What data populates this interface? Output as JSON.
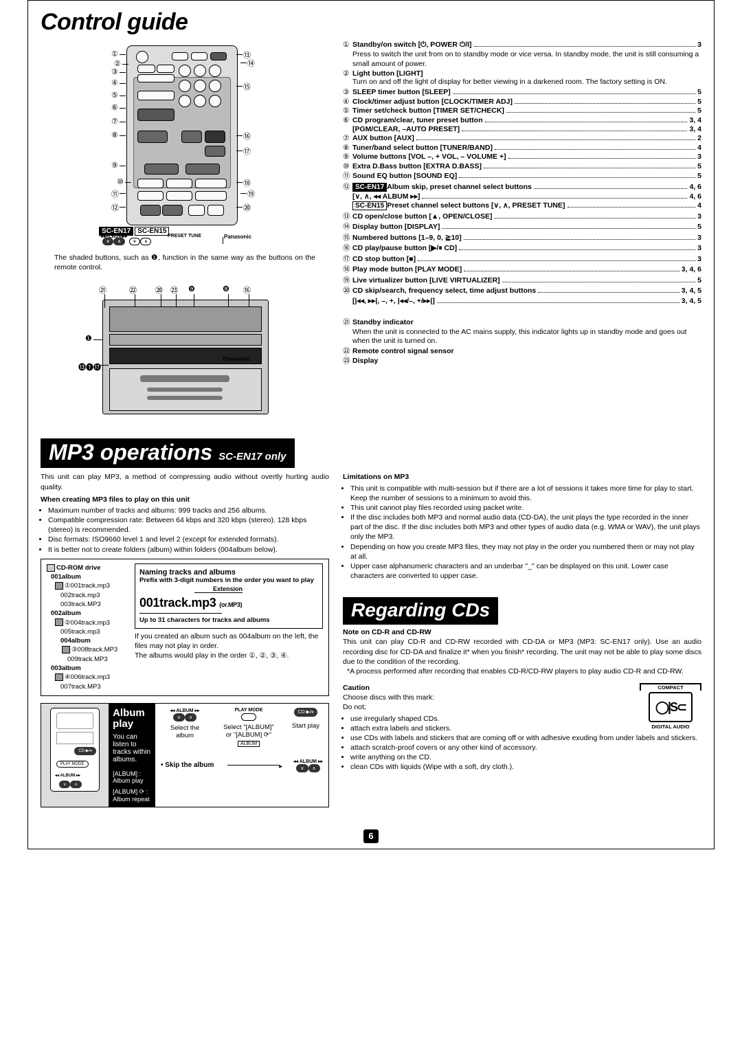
{
  "sections": {
    "controlGuide": "Control guide",
    "mp3ops": "MP3 operations",
    "mp3opsSub": "SC-EN17 only",
    "regardingCDs": "Regarding CDs"
  },
  "remote": {
    "models": {
      "en17": "SC-EN17",
      "en15": "SC-EN15"
    },
    "bottomLabels": {
      "album": "◂◂ALBUM▸▸",
      "preset": "PRESET TUNE",
      "brand": "Panasonic"
    },
    "note": "The shaded buttons, such as ❶, function in the same way as the buttons on the remote control.",
    "unitCallouts": {
      "a": "㉑",
      "b": "㉒",
      "c": "⑳",
      "d": "㉓",
      "e": "❾",
      "f": "❽",
      "g": "⑯",
      "h": "❶",
      "i": "⓭❶⓱"
    }
  },
  "toc": [
    {
      "n": "①",
      "label": "Standby/on switch [⏻, POWER ⏻/I]",
      "pg": "3",
      "sub": "Press to switch the unit from on to standby mode or vice versa.\nIn standby mode, the unit is still consuming a small amount of power."
    },
    {
      "n": "②",
      "label": "Light button [LIGHT]",
      "sub": "Turn on and off the light of display for better viewing in a darkened room. The factory setting is ON."
    },
    {
      "n": "③",
      "label": "SLEEP timer button [SLEEP]",
      "pg": "5"
    },
    {
      "n": "④",
      "label": "Clock/timer adjust button [CLOCK/TIMER ADJ]",
      "pg": "5"
    },
    {
      "n": "⑤",
      "label": "Timer set/check button [TIMER SET/CHECK]",
      "pg": "5"
    },
    {
      "n": "⑥",
      "label": "CD program/clear, tuner preset button",
      "subline": "[PGM/CLEAR, –AUTO PRESET]",
      "pg": "3, 4"
    },
    {
      "n": "⑦",
      "label": "AUX button [AUX]",
      "pg": "2"
    },
    {
      "n": "⑧",
      "label": "Tuner/band select button [TUNER/BAND]",
      "pg": "4"
    },
    {
      "n": "⑨",
      "label": "Volume buttons [VOL –, + VOL, – VOLUME +]",
      "pg": "3"
    },
    {
      "n": "⑩",
      "label": "Extra D.Bass button [EXTRA D.BASS]",
      "pg": "5"
    },
    {
      "n": "⑪",
      "label": "Sound EQ button [SOUND EQ]",
      "pg": "5"
    },
    {
      "n": "⑫",
      "badge": "SC-EN17",
      "label": "Album skip, preset channel select buttons",
      "subline": "[∨, ∧, ◂◂ ALBUM ▸▸]",
      "pg": "4, 6",
      "extra": {
        "badge": "SC-EN15",
        "label": "Preset channel select buttons [∨, ∧, PRESET TUNE]",
        "pg": "4"
      }
    },
    {
      "n": "⑬",
      "label": "CD open/close button [▲, OPEN/CLOSE]",
      "pg": "3"
    },
    {
      "n": "⑭",
      "label": "Display button [DISPLAY]",
      "pg": "5"
    },
    {
      "n": "⑮",
      "label": "Numbered buttons [1–9, 0, ≧10]",
      "pg": "3"
    },
    {
      "n": "⑯",
      "label": "CD play/pause button [▶/⏸ CD]",
      "pg": "3"
    },
    {
      "n": "⑰",
      "label": "CD stop button [■]",
      "pg": "3"
    },
    {
      "n": "⑱",
      "label": "Play mode button [PLAY MODE]",
      "pg": "3, 4, 6"
    },
    {
      "n": "⑲",
      "label": "Live virtualizer button [LIVE VIRTUALIZER]",
      "pg": "5"
    },
    {
      "n": "⑳",
      "label": "CD skip/search, frequency select, time adjust buttons",
      "subline": "[|◂◂, ▸▸|, –, +, |◂◂/–, +/▸▸|]",
      "pg": "3, 4, 5"
    }
  ],
  "lowerToc": [
    {
      "n": "㉑",
      "label": "Standby indicator",
      "sub": "When the unit is connected to the AC mains supply, this indicator lights up in standby mode and goes out when the unit is turned on."
    },
    {
      "n": "㉒",
      "label": "Remote control signal sensor"
    },
    {
      "n": "㉓",
      "label": "Display"
    }
  ],
  "mp3": {
    "intro": "This unit can play MP3, a method of compressing audio without overtly hurting audio quality.",
    "whenCreatingTitle": "When creating MP3 files to play on this unit",
    "whenCreating": [
      "Maximum number of tracks and albums: 999 tracks and 256 albums.",
      "Compatible compression rate: Between 64 kbps and 320 kbps (stereo). 128 kbps (stereo) is recommended.",
      "Disc formats: ISO9660 level 1 and level 2 (except for extended formats).",
      "It is better not to create folders (album) within folders (004album below)."
    ],
    "tree": {
      "root": "CD-ROM drive",
      "a1": "001album",
      "t1": "001track.mp3",
      "t2": "002track.mp3",
      "t3": "003track.MP3",
      "a2": "002album",
      "t4": "004track.mp3",
      "t5": "005track.mp3",
      "a4": "004album",
      "t8": "008track.MP3",
      "t9": "009track.MP3",
      "a3": "003album",
      "t6": "006track.mp3",
      "t7": "007track.MP3"
    },
    "naming": {
      "title": "Naming tracks and albums",
      "line1": "Prefix with 3-digit numbers in the order you want to play",
      "ext": "Extension",
      "big": "001track.mp3",
      "bigalt": "(or.MP3)",
      "line2": "Up to 31 characters for tracks and albums"
    },
    "treeNote1": "If you created an album such as 004album on the left, the files may not play in order.",
    "treeNote2": "The albums would play in the order ①, ②, ③, ④.",
    "album": {
      "title": "Album play",
      "youcan": "You can listen to tracks within albums.",
      "ap": "[ALBUM] : Album play",
      "ar": "[ALBUM] ⟳ : Album repeat",
      "selAlbum": "Select the album",
      "selMode": "Select \"[ALBUM]\" or \"[ALBUM] ⟳\"",
      "start": "Start play",
      "skip": "• Skip the album",
      "btnAlbum": "◂◂ ALBUM ▸▸",
      "btnVA": "∨  ∧",
      "btnPlay": "PLAY MODE",
      "btnCD": "CD ▶/⏸"
    },
    "limitTitle": "Limitations on MP3",
    "limits": [
      "This unit is compatible with multi-session but if there are a lot of sessions it takes more time for play to start. Keep the number of sessions to a minimum to avoid this.",
      "This unit cannot play files recorded using packet write.",
      "If the disc includes both MP3 and normal audio data (CD-DA), the unit plays the type recorded in the inner part of the disc. If the disc includes both MP3 and other types of audio data (e.g. WMA or WAV), the unit plays only the MP3.",
      "Depending on how you create MP3 files, they may not play in the order you numbered them or may not play at all.",
      "Upper case alphanumeric characters and an underbar \"_\" can be displayed on this unit. Lower case characters are converted to upper case."
    ]
  },
  "cds": {
    "noteTitle": "Note on CD-R and CD-RW",
    "note": "This unit can play CD-R and CD-RW recorded with CD-DA or MP3 (MP3: SC-EN17 only). Use an audio recording disc for CD-DA and finalize it* when you finish* recording. The unit may not be able to play some discs due to the condition of the recording.",
    "noteStar": "*A process performed after recording that enables CD-R/CD-RW players to play audio CD-R and CD-RW.",
    "cautionTitle": "Caution",
    "cautionIntro": "Choose discs with this mark:\nDo not;",
    "cautions": [
      "use irregularly shaped CDs.",
      "attach extra labels and stickers.",
      "use CDs with labels and stickers that are coming off or with adhesive exuding from under labels and stickers.",
      "attach scratch-proof covers or any other kind of accessory.",
      "write anything on the CD.",
      "clean CDs with liquids (Wipe with a soft, dry cloth.)."
    ],
    "logoTop": "COMPACT",
    "logoBottom": "DIGITAL AUDIO",
    "logoDisc": "disc"
  },
  "pageNum": "6",
  "style": {
    "bg": "#ffffff"
  }
}
